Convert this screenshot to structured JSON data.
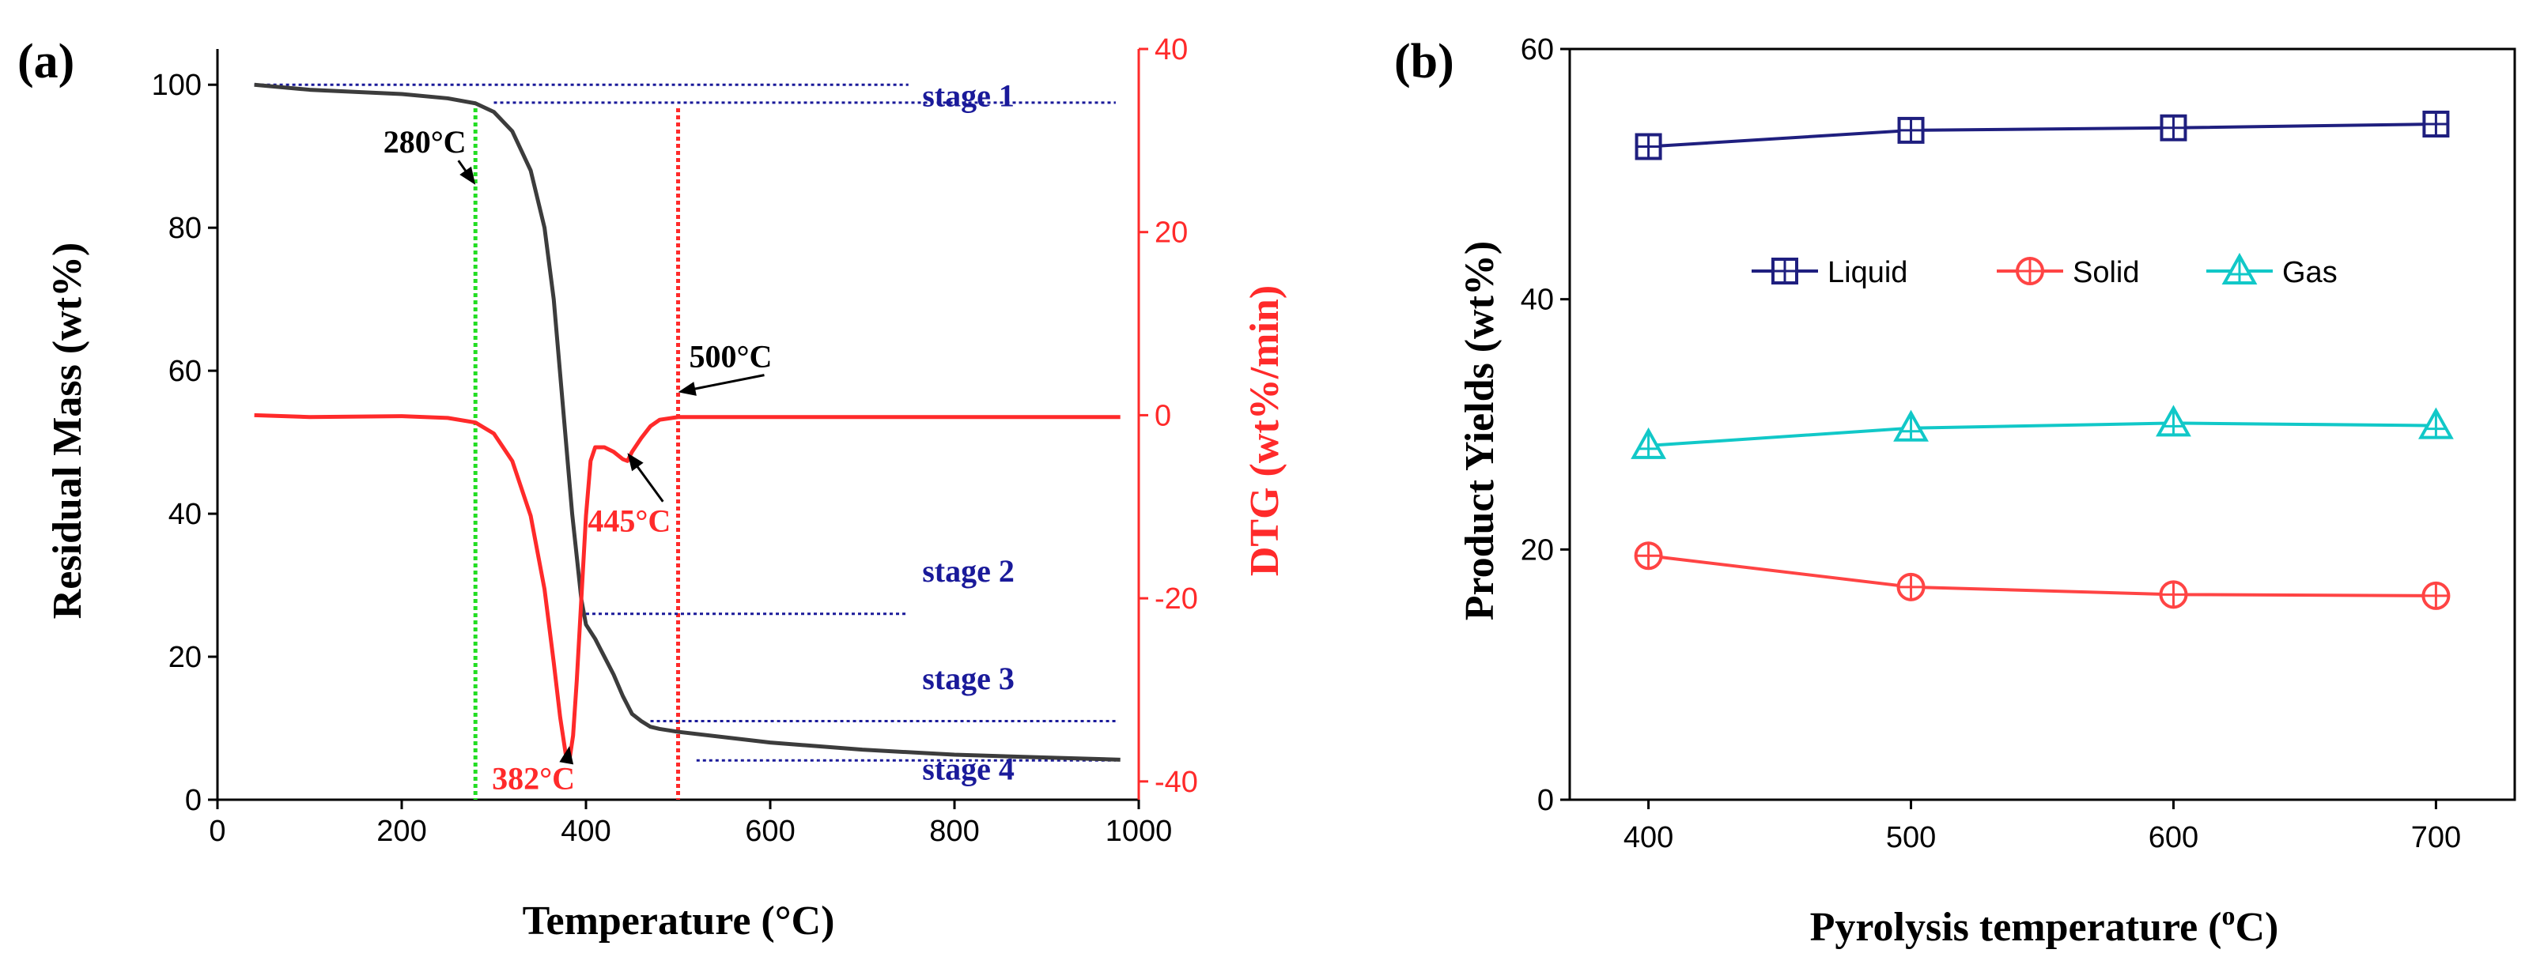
{
  "chart_data": [
    {
      "panel_label": "(a)",
      "type": "line",
      "xlabel": "Temperature (°C)",
      "ylabel": "Residual Mass (wt%)",
      "y2label": "DTG (wt%/min)",
      "xlim": [
        0,
        1000
      ],
      "ylim": [
        0,
        105
      ],
      "y2lim": [
        -42,
        40
      ],
      "xticks": [
        0,
        200,
        400,
        600,
        800,
        1000
      ],
      "yticks": [
        0,
        20,
        40,
        60,
        80,
        100
      ],
      "y2ticks": [
        -40,
        -20,
        0,
        20,
        40
      ],
      "colors": {
        "tg": "#3c3c3c",
        "dtg": "#ff2a2a",
        "stage": "#1a1a9a",
        "green": "#22dd22",
        "red": "#ff2a2a",
        "axis": "#000000"
      },
      "series": [
        {
          "name": "Residual Mass",
          "axis": "left",
          "x": [
            40,
            100,
            200,
            250,
            280,
            300,
            320,
            340,
            355,
            365,
            375,
            385,
            395,
            400,
            410,
            420,
            430,
            440,
            450,
            460,
            470,
            480,
            500,
            600,
            700,
            800,
            900,
            980
          ],
          "y": [
            100,
            99.3,
            98.7,
            98.1,
            97.4,
            96.2,
            93.5,
            88,
            80,
            70,
            55,
            40,
            28,
            24.5,
            22.5,
            20,
            17.5,
            14.5,
            12,
            11,
            10.2,
            9.9,
            9.5,
            8,
            7,
            6.3,
            5.9,
            5.6
          ]
        },
        {
          "name": "DTG",
          "axis": "right",
          "x": [
            40,
            100,
            200,
            250,
            280,
            300,
            320,
            340,
            355,
            365,
            372,
            378,
            382,
            386,
            390,
            395,
            400,
            405,
            410,
            420,
            430,
            440,
            445,
            450,
            460,
            470,
            480,
            500,
            600,
            700,
            800,
            900,
            980
          ],
          "y": [
            0,
            -0.2,
            -0.1,
            -0.3,
            -0.8,
            -2,
            -5,
            -11,
            -19,
            -27,
            -33,
            -37,
            -37.7,
            -35,
            -29,
            -20,
            -11,
            -5,
            -3.5,
            -3.5,
            -4,
            -4.8,
            -5,
            -4,
            -2.5,
            -1.2,
            -0.5,
            -0.2,
            -0.2,
            -0.2,
            -0.2,
            -0.2,
            -0.2
          ]
        }
      ],
      "vlines": [
        {
          "x": 280,
          "color": "green"
        },
        {
          "x": 500,
          "color": "red"
        }
      ],
      "stage_lines": [
        {
          "x": [
            40,
            750
          ],
          "y": 100
        },
        {
          "x": [
            300,
            975
          ],
          "y": 97.5
        },
        {
          "x": [
            400,
            750
          ],
          "y": 26
        },
        {
          "x": [
            470,
            975
          ],
          "y": 11
        },
        {
          "x": [
            520,
            975
          ],
          "y": 5.5
        }
      ],
      "stage_labels": [
        {
          "text": "stage 1",
          "x": 765,
          "y": 97
        },
        {
          "text": "stage 2",
          "x": 765,
          "y": 30.5
        },
        {
          "text": "stage 3",
          "x": 765,
          "y": 15.5
        },
        {
          "text": "stage 4",
          "x": 765,
          "y": 2.8
        }
      ],
      "annotations": [
        {
          "text": "280°C",
          "x": 180,
          "y": 90.5,
          "color": "black",
          "arrow_to": [
            280,
            86
          ]
        },
        {
          "text": "500°C",
          "x": 512,
          "y": 60.5,
          "color": "black",
          "arrow_to": [
            500,
            57
          ]
        },
        {
          "text": "445°C",
          "x": 402,
          "y": 37.5,
          "color": "red",
          "arrow_to": [
            445,
            48.5
          ]
        },
        {
          "text": "382°C",
          "x": 298,
          "y": 1.5,
          "color": "red",
          "arrow_to": [
            382,
            7.5
          ]
        }
      ]
    },
    {
      "panel_label": "(b)",
      "type": "line",
      "xlabel": "Pyrolysis temperature (oC)",
      "ylabel": "Product Yields (wt%)",
      "categories": [
        400,
        500,
        600,
        700
      ],
      "xlim": [
        370,
        730
      ],
      "ylim": [
        0,
        60
      ],
      "xticks": [
        400,
        500,
        600,
        700
      ],
      "yticks": [
        0,
        20,
        40,
        60
      ],
      "legend_position": "center",
      "series": [
        {
          "name": "Liquid",
          "color": "#1f1f7f",
          "marker": "square-plus",
          "values": [
            52.2,
            53.5,
            53.7,
            54.0
          ]
        },
        {
          "name": "Solid",
          "color": "#ff4444",
          "marker": "circle-plus",
          "values": [
            19.5,
            17.0,
            16.4,
            16.3
          ]
        },
        {
          "name": "Gas",
          "color": "#11c8c8",
          "marker": "triangle-plus",
          "values": [
            28.3,
            29.7,
            30.1,
            29.9
          ]
        }
      ]
    }
  ]
}
